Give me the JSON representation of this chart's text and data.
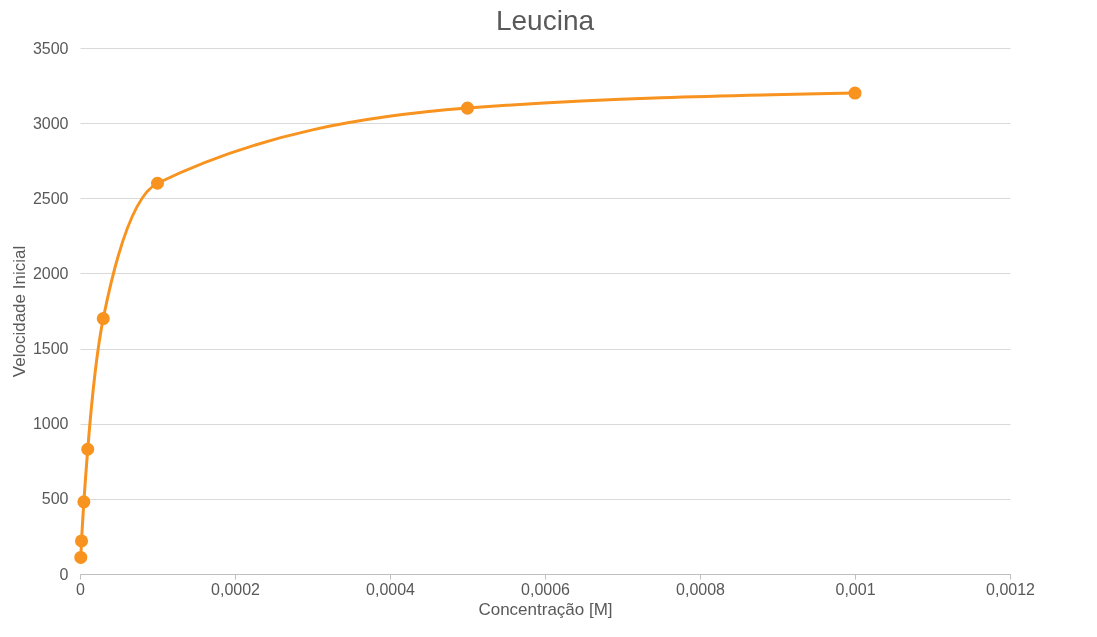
{
  "chart_data": {
    "type": "line",
    "title": "Leucina",
    "xlabel": "Concentração [M]",
    "ylabel": "Velocidade Inicial",
    "x": [
      1e-06,
      2e-06,
      5e-06,
      1e-05,
      3e-05,
      0.0001,
      0.0005,
      0.001
    ],
    "series": [
      {
        "color": "#f7931e",
        "values": [
          110,
          220,
          480,
          830,
          1700,
          2600,
          3100,
          3200
        ]
      }
    ],
    "xlim": [
      0,
      0.0012
    ],
    "xticks": [
      0,
      {
        "value": 0.0002,
        "label": "0,0002"
      },
      {
        "value": 0.0004,
        "label": "0,0004"
      },
      {
        "value": 0.0006,
        "label": "0,0006"
      },
      {
        "value": 0.0008,
        "label": "0,0008"
      },
      {
        "value": 0.001,
        "label": "0,001"
      },
      {
        "value": 0.0012,
        "label": "0,0012"
      }
    ],
    "ylim": [
      0,
      3500
    ],
    "yticks": [
      0,
      500,
      1000,
      1500,
      2000,
      2500,
      3000,
      3500
    ],
    "grid": "y",
    "marker": "circle",
    "line_style": "solid"
  }
}
